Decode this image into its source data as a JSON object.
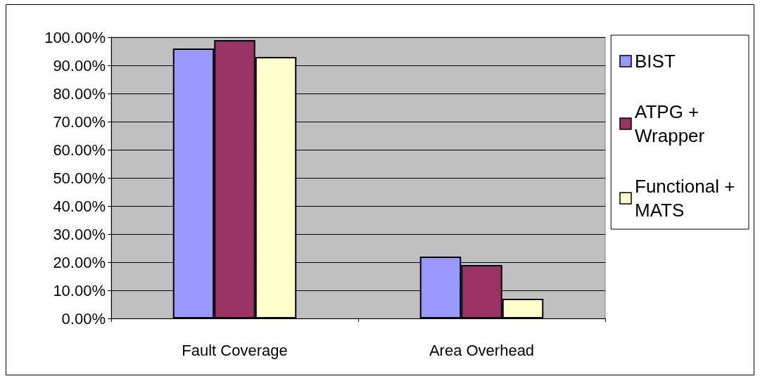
{
  "chart_data": {
    "type": "bar",
    "categories": [
      "Fault Coverage",
      "Area Overhead"
    ],
    "series": [
      {
        "name": "BIST",
        "color": "#9999ff",
        "values": [
          96,
          22
        ]
      },
      {
        "name": "ATPG + Wrapper",
        "color": "#993366",
        "values": [
          99,
          19
        ]
      },
      {
        "name": "Functional + MATS",
        "color": "#ffffcc",
        "values": [
          93,
          7
        ]
      }
    ],
    "ylim": [
      0,
      100
    ],
    "yticks": [
      {
        "value": 0,
        "label": "0.00%"
      },
      {
        "value": 10,
        "label": "10.00%"
      },
      {
        "value": 20,
        "label": "20.00%"
      },
      {
        "value": 30,
        "label": "30.00%"
      },
      {
        "value": 40,
        "label": "40.00%"
      },
      {
        "value": 50,
        "label": "50.00%"
      },
      {
        "value": 60,
        "label": "60.00%"
      },
      {
        "value": 70,
        "label": "70.00%"
      },
      {
        "value": 80,
        "label": "80.00%"
      },
      {
        "value": 90,
        "label": "90.00%"
      },
      {
        "value": 100,
        "label": "100.00%"
      }
    ],
    "grid": "y",
    "legend": "right"
  }
}
